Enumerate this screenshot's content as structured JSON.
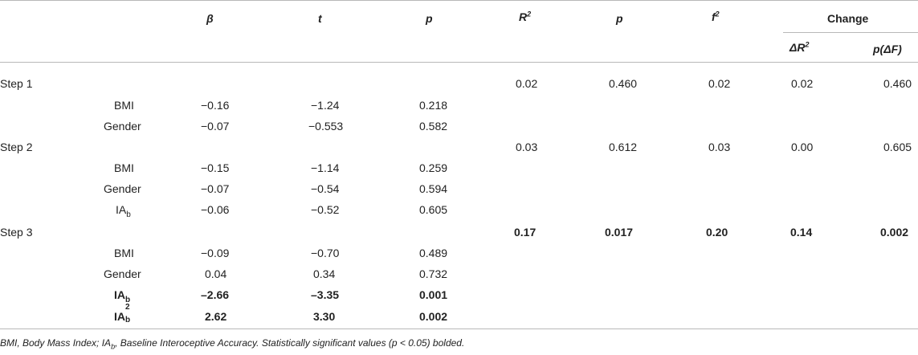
{
  "header": {
    "beta": "β",
    "t": "t",
    "p1": "p",
    "R": "R",
    "R_sup": "2",
    "p2": "p",
    "f": "f",
    "f_sup": "2",
    "change": "Change",
    "dR": "ΔR",
    "dR_sup": "2",
    "pdF": "p(ΔF)"
  },
  "steps": [
    {
      "label": "Step 1",
      "R2": "0.02",
      "p": "0.460",
      "f2": "0.02",
      "dR2": "0.02",
      "pdF": "0.460"
    },
    {
      "label": "Step 2",
      "R2": "0.03",
      "p": "0.612",
      "f2": "0.03",
      "dR2": "0.00",
      "pdF": "0.605"
    },
    {
      "label": "Step 3",
      "R2": "0.17",
      "p": "0.017",
      "f2": "0.20",
      "dR2": "0.14",
      "pdF": "0.002"
    }
  ],
  "rows": [
    {
      "name": "BMI",
      "beta": "−0.16",
      "t": "−1.24",
      "p": "0.218"
    },
    {
      "name": "Gender",
      "beta": "−0.07",
      "t": "−0.553",
      "p": "0.582"
    },
    {
      "name": "BMI",
      "beta": "−0.15",
      "t": "−1.14",
      "p": "0.259"
    },
    {
      "name": "Gender",
      "beta": "−0.07",
      "t": "−0.54",
      "p": "0.594"
    },
    {
      "name": "IA",
      "sub": "b",
      "beta": "−0.06",
      "t": "−0.52",
      "p": "0.605"
    },
    {
      "name": "BMI",
      "beta": "−0.09",
      "t": "−0.70",
      "p": "0.489"
    },
    {
      "name": "Gender",
      "beta": "0.04",
      "t": "0.34",
      "p": "0.732"
    },
    {
      "name": "IA",
      "sub": "b",
      "beta": "–2.66",
      "t": "–3.35",
      "p": "0.001"
    },
    {
      "name": "IA",
      "sub": "b",
      "sup": "2",
      "beta": "2.62",
      "t": "3.30",
      "p": "0.002"
    }
  ],
  "footnote": {
    "a": "BMI, Body Mass Index; IA",
    "sub": "b",
    "b": ", Baseline Interoceptive Accuracy. Statistically significant values (p < 0.05) bolded."
  }
}
